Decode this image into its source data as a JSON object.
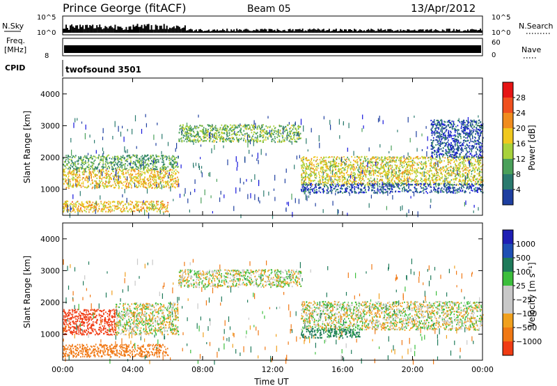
{
  "header": {
    "station": "Prince George (fitACF)",
    "beam": "Beam 05",
    "date": "13/Apr/2012"
  },
  "top_panels": {
    "nsky_label": "N.Sky",
    "nsky_ticks": [
      "10^5",
      "10^0"
    ],
    "nsearch_label": "N.Search",
    "nsearch_ticks": [
      "10^5",
      "10^0"
    ],
    "freq_label_1": "Freq.",
    "freq_label_2": "[MHz]",
    "freq_ticks": [
      "8"
    ],
    "nave_label": "Nave",
    "nave_ticks": [
      "60",
      "0"
    ],
    "cpid_label": "CPID",
    "cpid_value": "twofsound 3501"
  },
  "colors": {
    "power_scale": [
      "#1414dc",
      "#1e3fa0",
      "#2a7a6e",
      "#4aa05a",
      "#a8d23c",
      "#f0c81e",
      "#f08c1e",
      "#f0501e",
      "#e61414"
    ],
    "velocity_scale": [
      "#1e1eb4",
      "#1e4fb4",
      "#1e7a5a",
      "#3cbe3c",
      "#c8c8c8",
      "#c8c8c8",
      "#f0a01e",
      "#f07814",
      "#f03c14",
      "#e61414"
    ]
  },
  "chart_data": [
    {
      "type": "heatmap",
      "panel": "power",
      "xlabel": "Time UT",
      "ylabel": "Slant Range [km]",
      "x_ticks": [
        "00:00",
        "04:00",
        "08:00",
        "12:00",
        "16:00",
        "20:00",
        "00:00"
      ],
      "y_ticks": [
        "1000",
        "2000",
        "3000",
        "4000"
      ],
      "ylim": [
        180,
        4500
      ],
      "colorbar_label": "Power [dB]",
      "colorbar_ticks": [
        "4",
        "8",
        "12",
        "16",
        "20",
        "24",
        "28"
      ],
      "colorbar_range": [
        0,
        32
      ],
      "bands": [
        {
          "t0": 0.0,
          "t1": 6.6,
          "r0": 1050,
          "r1": 1650,
          "value": 20
        },
        {
          "t0": 0.0,
          "t1": 6.6,
          "r0": 1650,
          "r1": 2100,
          "value": 12
        },
        {
          "t0": 0.0,
          "t1": 6.0,
          "r0": 300,
          "r1": 650,
          "value": 20
        },
        {
          "t0": 6.6,
          "t1": 13.6,
          "r0": 2500,
          "r1": 3050,
          "value": 14
        },
        {
          "t0": 13.6,
          "t1": 24.0,
          "r0": 1150,
          "r1": 2050,
          "value": 18
        },
        {
          "t0": 13.6,
          "t1": 24.0,
          "r0": 900,
          "r1": 1200,
          "value": 6
        },
        {
          "t0": 21.0,
          "t1": 24.0,
          "r0": 2000,
          "r1": 3200,
          "value": 6
        }
      ]
    },
    {
      "type": "heatmap",
      "panel": "velocity",
      "xlabel": "Time UT",
      "ylabel": "Slant Range [km]",
      "x_ticks": [
        "00:00",
        "04:00",
        "08:00",
        "12:00",
        "16:00",
        "20:00",
        "00:00"
      ],
      "y_ticks": [
        "1000",
        "2000",
        "3000",
        "4000"
      ],
      "ylim": [
        180,
        4500
      ],
      "colorbar_label": "Velocity [m s⁻¹]",
      "colorbar_ticks": [
        "1000",
        "500",
        "100",
        "25",
        "−25",
        "−100",
        "−500",
        "−1000"
      ],
      "bands": [
        {
          "t0": 0.0,
          "t1": 3.0,
          "r0": 1000,
          "r1": 1800,
          "value": -800
        },
        {
          "t0": 0.0,
          "t1": 6.0,
          "r0": 300,
          "r1": 700,
          "value": -300
        },
        {
          "t0": 3.0,
          "t1": 6.6,
          "r0": 1000,
          "r1": 2000,
          "value": 0
        },
        {
          "t0": 6.6,
          "t1": 13.6,
          "r0": 2500,
          "r1": 3050,
          "value": 0
        },
        {
          "t0": 13.6,
          "t1": 24.0,
          "r0": 1150,
          "r1": 2050,
          "value": 0
        },
        {
          "t0": 13.6,
          "t1": 17.0,
          "r0": 900,
          "r1": 1200,
          "value": 150
        }
      ]
    }
  ]
}
